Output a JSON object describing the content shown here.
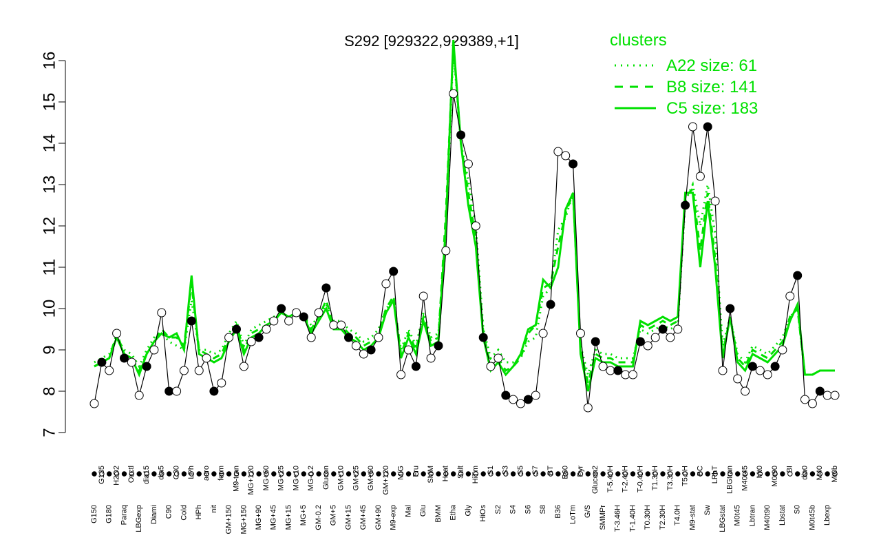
{
  "chart_data": {
    "type": "line",
    "title": "S292 [929322,929389,+1]",
    "xlabel": "",
    "ylabel": "",
    "ylim": [
      7,
      16
    ],
    "yticks": [
      7,
      8,
      9,
      10,
      11,
      12,
      13,
      14,
      15,
      16
    ],
    "x_tick_labels": [
      "G150",
      "G135",
      "G180",
      "H2O2",
      "Paraq",
      "Oxctl",
      "LBGexp",
      "dia15",
      "Diami",
      "dia5",
      "C90",
      "C30",
      "Cold",
      "LPh",
      "HPh",
      "aero",
      "nit",
      "ferm",
      "GM+150",
      "M9-tran",
      "MG+150",
      "MG+120",
      "MG+90",
      "MG+60",
      "MG+45",
      "MG+25",
      "MG+15",
      "MG+10",
      "MG+5",
      "MG-0.2",
      "GM-0.2",
      "Glucon",
      "GM+5",
      "GM+10",
      "GM+15",
      "GM+25",
      "GM+45",
      "GM+60",
      "GM+90",
      "GM+120",
      "M9-exp",
      "M/G",
      "Mal",
      "Fru",
      "Glu",
      "SMM",
      "BMM",
      "Heat",
      "Etha",
      "Salt",
      "Gly",
      "HiTm",
      "HiOs",
      "S1",
      "S2",
      "S3",
      "S4",
      "S5",
      "S6",
      "S7",
      "S8",
      "BT",
      "B36",
      "B60",
      "LoTm",
      "Pyr",
      "G/S",
      "Glucon2",
      "SMMPr",
      "T-5.40H",
      "T-3.46H",
      "T-2.40H",
      "T-1.40H",
      "T-0.40H",
      "T0.30H",
      "T1.30H",
      "T2.30H",
      "T3.30H",
      "T4.0H",
      "T5.0H",
      "M9-stat",
      "BC",
      "Sw",
      "LPhT",
      "LBGstat",
      "LBGtran",
      "M0t45",
      "M40t45",
      "Lbtran",
      "Mt0",
      "M40t90",
      "M0t90",
      "Lbstat",
      "BI",
      "S0",
      "dia0",
      "M0t45b",
      "M40",
      "Lbexp",
      "Mt0b"
    ],
    "legend_position": "top-right",
    "legend_title": "clusters",
    "legend": [
      {
        "label": "A22 size: 61",
        "style": "dotted"
      },
      {
        "label": "B8 size: 141",
        "style": "dashed"
      },
      {
        "label": "C5 size: 183",
        "style": "solid"
      }
    ],
    "colors": {
      "cluster_line": "#00e000",
      "series_line": "#000000",
      "axis": "#000000"
    },
    "grid": false,
    "series": [
      {
        "values": [
          7.7,
          8.7,
          8.5,
          9.4,
          8.8,
          8.7,
          7.9,
          8.6,
          9.0,
          9.9,
          8.0,
          8.0,
          8.5,
          9.7,
          8.5,
          8.8,
          8.0,
          8.2,
          9.3,
          9.5,
          8.6,
          9.2,
          9.3,
          9.5,
          9.7,
          10.0,
          9.7,
          9.9,
          9.8,
          9.3,
          9.9,
          10.5,
          9.6,
          9.6,
          9.3,
          9.1,
          8.9,
          9.0,
          9.3,
          10.6,
          10.9,
          8.4,
          9.0,
          8.6,
          10.3,
          8.8,
          9.1,
          11.4,
          15.2,
          14.2,
          13.5,
          12.0,
          9.3,
          8.6,
          8.8,
          7.9,
          7.8,
          7.7,
          7.8,
          7.9,
          9.4,
          10.1,
          13.8,
          13.7,
          13.5,
          9.4,
          7.6,
          9.2,
          8.6,
          8.5,
          8.5,
          8.4,
          8.4,
          9.2,
          9.1,
          9.3,
          9.5,
          9.3,
          9.5,
          12.5,
          14.4,
          13.2,
          14.4,
          12.6,
          8.5,
          10.0,
          8.3,
          8.0,
          8.6,
          8.5,
          8.4,
          8.6,
          9.0,
          10.3,
          10.8,
          7.8,
          7.7,
          8.0,
          7.9,
          7.9
        ]
      }
    ],
    "cluster_lines": [
      {
        "name": "A22",
        "values": [
          8.7,
          8.8,
          8.9,
          9.3,
          9.0,
          8.9,
          8.6,
          9.0,
          9.3,
          9.4,
          9.2,
          9.1,
          9.0,
          10.2,
          9.0,
          9.0,
          8.9,
          9.0,
          9.4,
          9.7,
          9.1,
          9.5,
          9.6,
          9.7,
          9.8,
          9.9,
          9.8,
          9.9,
          9.8,
          9.6,
          9.8,
          10.1,
          9.7,
          9.7,
          9.5,
          9.4,
          9.2,
          9.3,
          9.5,
          10.0,
          10.2,
          9.0,
          9.5,
          9.1,
          9.9,
          9.3,
          9.4,
          11.9,
          16.3,
          14.0,
          13.1,
          12.0,
          9.5,
          8.8,
          9.0,
          8.7,
          8.7,
          8.8,
          9.2,
          9.3,
          10.3,
          10.5,
          11.9,
          12.2,
          12.8,
          9.1,
          8.4,
          9.0,
          8.9,
          8.9,
          8.8,
          8.8,
          8.8,
          9.5,
          9.4,
          9.5,
          9.6,
          9.5,
          9.6,
          12.6,
          13.0,
          12.0,
          13.0,
          11.8,
          9.1,
          9.8,
          8.9,
          8.7,
          9.1,
          9.0,
          8.9,
          9.1,
          9.3,
          9.8,
          10.0,
          8.4,
          8.4,
          8.5,
          8.5,
          8.5
        ],
        "style": "dotted"
      },
      {
        "name": "B8",
        "values": [
          8.6,
          8.7,
          8.8,
          9.4,
          8.9,
          8.8,
          8.5,
          8.9,
          9.2,
          9.5,
          9.3,
          9.3,
          9.1,
          10.6,
          9.0,
          8.9,
          8.8,
          8.9,
          9.3,
          9.6,
          9.0,
          9.4,
          9.5,
          9.6,
          9.7,
          9.9,
          9.8,
          9.9,
          9.8,
          9.5,
          9.8,
          10.2,
          9.6,
          9.6,
          9.4,
          9.3,
          9.1,
          9.2,
          9.4,
          10.0,
          10.3,
          8.9,
          9.4,
          9.0,
          9.8,
          9.2,
          9.3,
          12.3,
          16.4,
          14.0,
          12.8,
          11.7,
          9.4,
          8.6,
          8.8,
          8.5,
          8.6,
          8.8,
          9.4,
          9.6,
          10.5,
          10.6,
          11.5,
          12.3,
          12.8,
          9.0,
          8.2,
          8.9,
          8.8,
          8.8,
          8.7,
          8.7,
          8.7,
          9.6,
          9.5,
          9.6,
          9.7,
          9.6,
          9.7,
          12.7,
          12.9,
          11.4,
          12.8,
          11.2,
          8.9,
          9.8,
          8.8,
          8.6,
          9.0,
          8.9,
          8.8,
          9.0,
          9.2,
          9.8,
          10.0,
          8.4,
          8.4,
          8.5,
          8.5,
          8.5
        ],
        "style": "dashed"
      },
      {
        "name": "C5",
        "values": [
          8.6,
          8.7,
          8.8,
          9.3,
          8.9,
          8.8,
          8.4,
          8.9,
          9.2,
          9.4,
          9.3,
          9.4,
          9.0,
          10.8,
          8.9,
          8.8,
          8.7,
          8.8,
          9.2,
          9.5,
          8.9,
          9.3,
          9.4,
          9.6,
          9.7,
          9.9,
          9.8,
          9.9,
          9.8,
          9.4,
          9.7,
          10.0,
          9.5,
          9.5,
          9.3,
          9.2,
          9.0,
          9.1,
          9.3,
          9.9,
          10.2,
          8.8,
          9.3,
          8.9,
          9.7,
          9.1,
          9.2,
          12.0,
          16.5,
          14.0,
          12.5,
          11.5,
          9.3,
          8.5,
          8.7,
          8.4,
          8.6,
          8.9,
          9.5,
          9.6,
          10.7,
          10.5,
          11.0,
          12.4,
          12.8,
          8.9,
          8.0,
          8.8,
          8.7,
          8.7,
          8.6,
          8.6,
          8.6,
          9.7,
          9.6,
          9.7,
          9.8,
          9.7,
          9.8,
          12.8,
          12.8,
          11.0,
          12.6,
          11.0,
          8.8,
          9.8,
          8.7,
          8.5,
          8.9,
          8.8,
          8.7,
          8.9,
          9.1,
          9.7,
          10.1,
          8.4,
          8.4,
          8.5,
          8.5,
          8.5
        ],
        "style": "solid"
      }
    ]
  }
}
